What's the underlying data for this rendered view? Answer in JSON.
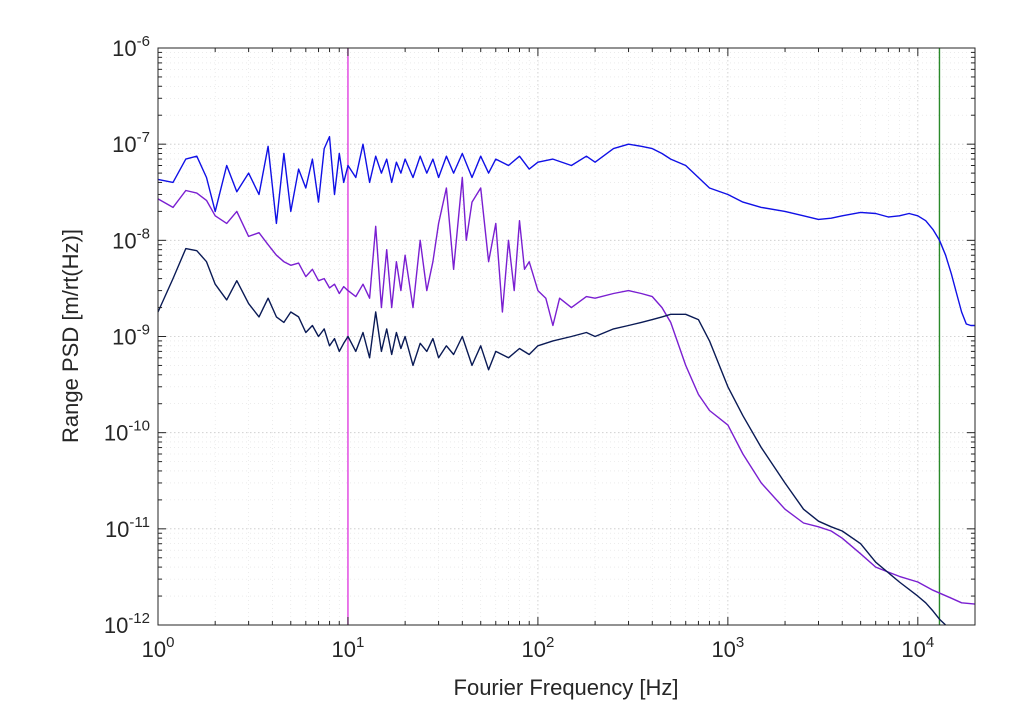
{
  "chart_data": {
    "type": "line",
    "xlabel": "Fourier Frequency [Hz]",
    "ylabel": "Range PSD [m/rt(Hz)]",
    "xscale": "log",
    "yscale": "log",
    "xlim": [
      1,
      20000
    ],
    "ylim": [
      1e-12,
      1e-06
    ],
    "grid": true,
    "x_ticks": [
      {
        "base": "10",
        "exp": "0"
      },
      {
        "base": "10",
        "exp": "1"
      },
      {
        "base": "10",
        "exp": "2"
      },
      {
        "base": "10",
        "exp": "3"
      },
      {
        "base": "10",
        "exp": "4"
      }
    ],
    "y_ticks": [
      {
        "base": "10",
        "exp": "-12"
      },
      {
        "base": "10",
        "exp": "-11"
      },
      {
        "base": "10",
        "exp": "-10"
      },
      {
        "base": "10",
        "exp": "-9"
      },
      {
        "base": "10",
        "exp": "-8"
      },
      {
        "base": "10",
        "exp": "-7"
      },
      {
        "base": "10",
        "exp": "-6"
      }
    ],
    "series": [
      {
        "color": "#1010e6",
        "x": [
          1,
          1.2,
          1.4,
          1.6,
          1.8,
          2,
          2.3,
          2.6,
          3,
          3.4,
          3.8,
          4.2,
          4.6,
          5,
          5.5,
          6,
          6.5,
          7,
          7.5,
          8,
          8.5,
          9,
          9.5,
          10,
          11,
          12,
          13,
          14,
          15,
          16,
          17,
          18,
          19,
          20,
          22,
          24,
          26,
          28,
          30,
          33,
          36,
          40,
          45,
          50,
          55,
          60,
          70,
          80,
          90,
          100,
          120,
          150,
          180,
          200,
          250,
          300,
          350,
          400,
          450,
          500,
          600,
          700,
          800,
          1000,
          1200,
          1500,
          2000,
          2500,
          3000,
          3500,
          4000,
          5000,
          6000,
          7000,
          8000,
          9000,
          10000,
          11000,
          12000,
          13000,
          14000,
          15000,
          16000,
          17000,
          18000,
          19000,
          20000
        ],
        "y": [
          4.3e-08,
          4e-08,
          7e-08,
          7.5e-08,
          4.5e-08,
          2e-08,
          6e-08,
          3.2e-08,
          5e-08,
          3e-08,
          9.5e-08,
          1.5e-08,
          8e-08,
          2e-08,
          5.5e-08,
          3.5e-08,
          7e-08,
          2.5e-08,
          9e-08,
          1.2e-07,
          3e-08,
          8e-08,
          4e-08,
          6e-08,
          4.5e-08,
          1e-07,
          4e-08,
          7.5e-08,
          5e-08,
          7e-08,
          4e-08,
          6.5e-08,
          5e-08,
          7e-08,
          4.5e-08,
          7.5e-08,
          5e-08,
          7e-08,
          4.5e-08,
          7.5e-08,
          5e-08,
          8e-08,
          4.5e-08,
          7.5e-08,
          5e-08,
          7e-08,
          6e-08,
          7.5e-08,
          5.5e-08,
          6.5e-08,
          7e-08,
          6e-08,
          7.5e-08,
          6.5e-08,
          9e-08,
          1e-07,
          9.5e-08,
          9e-08,
          8e-08,
          7e-08,
          6e-08,
          4.5e-08,
          3.5e-08,
          3e-08,
          2.5e-08,
          2.2e-08,
          2e-08,
          1.8e-08,
          1.65e-08,
          1.7e-08,
          1.8e-08,
          1.95e-08,
          1.9e-08,
          1.75e-08,
          1.8e-08,
          1.9e-08,
          1.8e-08,
          1.6e-08,
          1.3e-08,
          1e-08,
          7e-09,
          4.5e-09,
          2.8e-09,
          1.8e-09,
          1.35e-09,
          1.3e-09,
          1.3e-09
        ]
      },
      {
        "color": "#7a1fd1",
        "x": [
          1,
          1.2,
          1.4,
          1.6,
          1.8,
          2,
          2.3,
          2.6,
          3,
          3.4,
          3.8,
          4.2,
          4.6,
          5,
          5.5,
          6,
          6.5,
          7,
          7.5,
          8,
          8.5,
          9,
          9.5,
          10,
          11,
          12,
          13,
          14,
          15,
          16,
          17,
          18,
          19,
          20,
          22,
          24,
          26,
          28,
          30,
          33,
          36,
          40,
          42,
          45,
          50,
          55,
          60,
          65,
          70,
          75,
          80,
          85,
          90,
          100,
          110,
          120,
          130,
          150,
          180,
          200,
          250,
          300,
          350,
          400,
          450,
          500,
          600,
          700,
          800,
          1000,
          1200,
          1500,
          2000,
          2500,
          3000,
          3500,
          4000,
          5000,
          6000,
          8000,
          10000,
          12000,
          15000,
          17000,
          20000
        ],
        "y": [
          2.7e-08,
          2.2e-08,
          3.3e-08,
          3.1e-08,
          2.6e-08,
          1.8e-08,
          1.5e-08,
          2e-08,
          1.1e-08,
          1.2e-08,
          9e-09,
          7e-09,
          6e-09,
          5.5e-09,
          5.8e-09,
          4.2e-09,
          5e-09,
          3.8e-09,
          4e-09,
          3.2e-09,
          3.5e-09,
          2.8e-09,
          3.3e-09,
          3e-09,
          2.6e-09,
          3.5e-09,
          2.5e-09,
          1.4e-08,
          2e-09,
          8e-09,
          2e-09,
          6e-09,
          3e-09,
          7e-09,
          2e-09,
          1e-08,
          3e-09,
          6e-09,
          1.5e-08,
          3.5e-08,
          5e-09,
          4.5e-08,
          1e-08,
          2.5e-08,
          3.5e-08,
          6e-09,
          1.5e-08,
          1.8e-09,
          1e-08,
          3e-09,
          1.6e-08,
          5e-09,
          6e-09,
          3e-09,
          2.5e-09,
          1.3e-09,
          2.5e-09,
          2e-09,
          2.6e-09,
          2.5e-09,
          2.8e-09,
          3e-09,
          2.8e-09,
          2.6e-09,
          2e-09,
          1.4e-09,
          5e-10,
          2.5e-10,
          1.7e-10,
          1.2e-10,
          6e-11,
          3e-11,
          1.6e-11,
          1.15e-11,
          1.05e-11,
          9.5e-12,
          8e-12,
          5.5e-12,
          4e-12,
          3.2e-12,
          2.8e-12,
          2.3e-12,
          1.9e-12,
          1.7e-12,
          1.65e-12
        ]
      },
      {
        "color": "#0a1a55",
        "x": [
          1,
          1.2,
          1.4,
          1.6,
          1.8,
          2,
          2.3,
          2.6,
          3,
          3.4,
          3.8,
          4.2,
          4.6,
          5,
          5.5,
          6,
          6.5,
          7,
          7.5,
          8,
          8.5,
          9,
          9.5,
          10,
          11,
          12,
          13,
          14,
          15,
          16,
          17,
          18,
          19,
          20,
          22,
          24,
          26,
          28,
          30,
          33,
          36,
          40,
          45,
          50,
          55,
          60,
          70,
          80,
          90,
          100,
          120,
          150,
          180,
          200,
          250,
          300,
          350,
          400,
          450,
          500,
          600,
          700,
          800,
          1000,
          1200,
          1500,
          2000,
          2500,
          3000,
          3500,
          4000,
          5000,
          6000,
          8000,
          10000,
          11000,
          12000,
          13000,
          14000
        ],
        "y": [
          1.8e-09,
          4e-09,
          8.2e-09,
          7.8e-09,
          6e-09,
          3.5e-09,
          2.4e-09,
          3.8e-09,
          2.2e-09,
          1.6e-09,
          2.5e-09,
          1.6e-09,
          1.4e-09,
          1.8e-09,
          1.6e-09,
          1.1e-09,
          1.3e-09,
          1e-09,
          1.2e-09,
          8e-10,
          9.5e-10,
          7e-10,
          8.5e-10,
          1e-09,
          7e-10,
          1.1e-09,
          6e-10,
          1.8e-09,
          7e-10,
          1.2e-09,
          6.5e-10,
          1.1e-09,
          7.5e-10,
          1e-09,
          5e-10,
          8.5e-10,
          7e-10,
          9.5e-10,
          6e-10,
          8e-10,
          6.5e-10,
          1e-09,
          5e-10,
          8e-10,
          4.5e-10,
          7e-10,
          6e-10,
          7.5e-10,
          6.5e-10,
          8e-10,
          9e-10,
          1e-09,
          1.1e-09,
          1e-09,
          1.2e-09,
          1.3e-09,
          1.4e-09,
          1.5e-09,
          1.6e-09,
          1.7e-09,
          1.7e-09,
          1.5e-09,
          9e-10,
          3e-10,
          1.5e-10,
          7e-11,
          3e-11,
          1.6e-11,
          1.2e-11,
          1.05e-11,
          9.5e-12,
          7e-12,
          4.5e-12,
          2.8e-12,
          2e-12,
          1.7e-12,
          1.4e-12,
          1.15e-12,
          1e-12
        ]
      }
    ],
    "vlines": [
      {
        "x": 10,
        "color": "#e040e0"
      },
      {
        "x": 13000,
        "color": "#2a8a2a"
      }
    ]
  }
}
